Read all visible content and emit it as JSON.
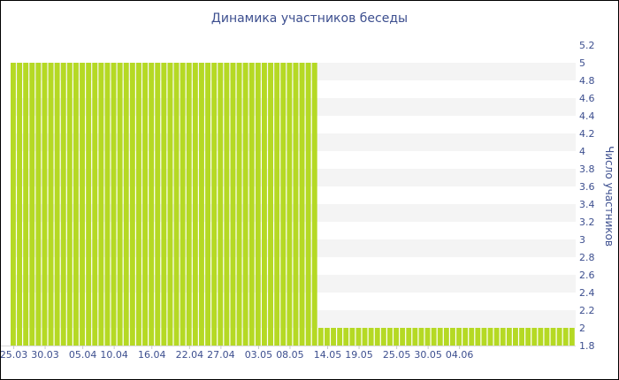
{
  "chart_data": {
    "type": "bar",
    "title": "Динамика участников беседы",
    "ylabel": "Число участников",
    "xlabel": "",
    "ylim": [
      1.8,
      5.2
    ],
    "y_ticks": [
      "5.2",
      "5",
      "4.8",
      "4.6",
      "4.4",
      "4.2",
      "4",
      "3.8",
      "3.6",
      "3.4",
      "3.2",
      "3",
      "2.8",
      "2.6",
      "2.4",
      "2.2",
      "2",
      "1.8"
    ],
    "y_tick_values": [
      5.2,
      5,
      4.8,
      4.6,
      4.4,
      4.2,
      4,
      3.8,
      3.6,
      3.4,
      3.2,
      3,
      2.8,
      2.6,
      2.4,
      2.2,
      2,
      1.8
    ],
    "x_tick_labels": [
      "25.03",
      "30.03",
      "05.04",
      "10.04",
      "16.04",
      "22.04",
      "27.04",
      "03.05",
      "08.05",
      "14.05",
      "19.05",
      "25.05",
      "30.05",
      "04.06"
    ],
    "x_tick_day_index": [
      0,
      5,
      11,
      16,
      22,
      28,
      33,
      39,
      44,
      50,
      55,
      61,
      66,
      71
    ],
    "grid": "horizontal bands",
    "colors": {
      "bar": "#b5d924",
      "text": "#3d4f8f",
      "band": "#f4f4f4"
    },
    "series": [
      {
        "values": [
          5,
          5,
          5,
          5,
          5,
          5,
          5,
          5,
          5,
          5,
          5,
          5,
          5,
          5,
          5,
          5,
          5,
          5,
          5,
          5,
          5,
          5,
          5,
          5,
          5,
          5,
          5,
          5,
          5,
          5,
          5,
          5,
          5,
          5,
          5,
          5,
          5,
          5,
          5,
          5,
          5,
          5,
          5,
          5,
          5,
          5,
          5,
          5,
          5,
          2,
          2,
          2,
          2,
          2,
          2,
          2,
          2,
          2,
          2,
          2,
          2,
          2,
          2,
          2,
          2,
          2,
          2,
          2,
          2,
          2,
          2,
          2,
          2,
          2,
          2,
          2,
          2,
          2,
          2,
          2,
          2,
          2,
          2,
          2,
          2,
          2,
          2,
          2,
          2,
          2
        ]
      }
    ]
  }
}
